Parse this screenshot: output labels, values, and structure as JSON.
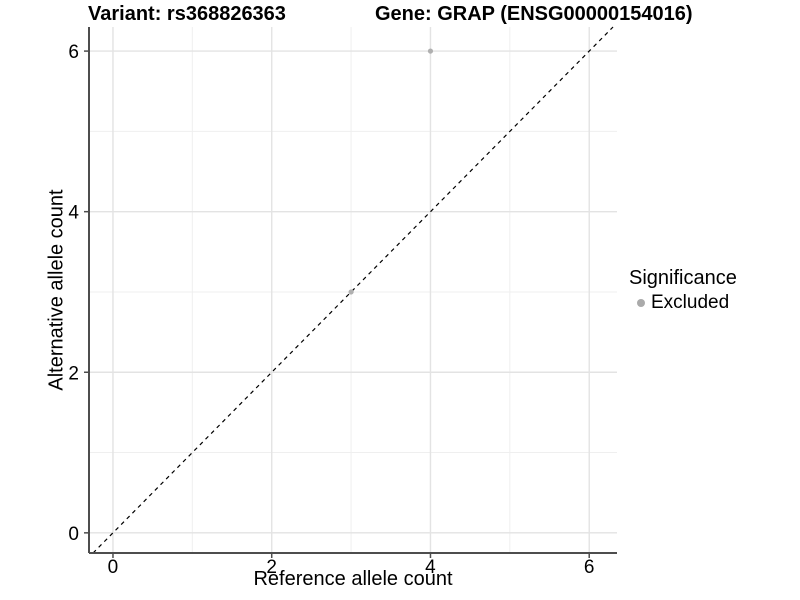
{
  "chart_data": {
    "type": "scatter",
    "titles": {
      "left": "Variant: rs368826363",
      "right": "Gene: GRAP (ENSG00000154016)"
    },
    "xlabel": "Reference allele count",
    "ylabel": "Alternative allele count",
    "xlim": [
      -0.302,
      6.35
    ],
    "ylim": [
      -0.251,
      6.3
    ],
    "xticks": [
      0,
      2,
      4,
      6
    ],
    "yticks": [
      0,
      2,
      4,
      6
    ],
    "minor_xticks": [
      1,
      3,
      5
    ],
    "minor_yticks": [
      1,
      3,
      5
    ],
    "grid": true,
    "points": [
      {
        "x": 3,
        "y": 3,
        "significance": "Excluded"
      },
      {
        "x": 4,
        "y": 6,
        "significance": "Excluded"
      }
    ],
    "reference_line": {
      "type": "identity",
      "style": "dashed"
    },
    "legend": {
      "title": "Significance",
      "position": "right",
      "entries": [
        {
          "label": "Excluded",
          "color": "#aaaaaa"
        }
      ]
    },
    "colors": {
      "point": "#b0b0b0",
      "grid_major": "#e3e3e3",
      "grid_minor": "#efefef",
      "axis": "#4d4d4d",
      "dashed_line": "#000000",
      "text": "#000000",
      "background": "#ffffff"
    }
  }
}
